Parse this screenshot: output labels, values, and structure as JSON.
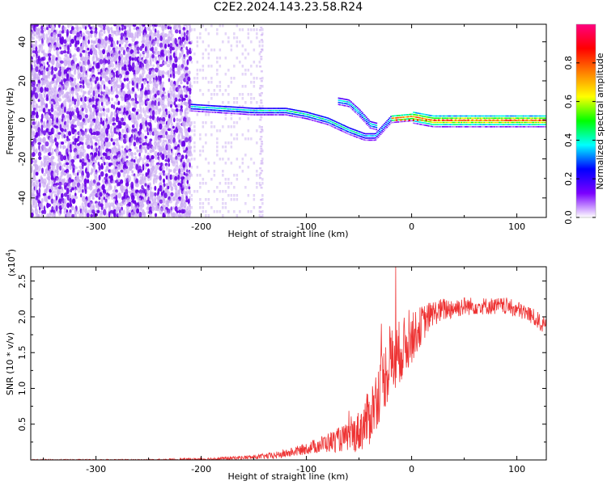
{
  "title": "C2E2.2024.143.23.58.R24",
  "chart_data": [
    {
      "type": "heatmap",
      "title": "C2E2.2024.143.23.58.R24",
      "xlabel": "Height of straight line (km)",
      "ylabel": "Frequency (Hz)",
      "xlim": [
        -362,
        128
      ],
      "ylim": [
        -50,
        49
      ],
      "x_ticks": [
        "-300",
        "-200",
        "-100",
        "0",
        "100"
      ],
      "x_tick_values": [
        -300,
        -200,
        -100,
        0,
        100
      ],
      "y_ticks": [
        "40",
        "20",
        "0",
        "-20",
        "-40"
      ],
      "y_tick_values": [
        40,
        20,
        0,
        -20,
        -40
      ],
      "colorbar": {
        "label": "Normalized spectral amplitude",
        "range": [
          0,
          1
        ],
        "ticks": [
          "0.0",
          "0.2",
          "0.4",
          "0.6",
          "0.8"
        ],
        "tick_values": [
          0.0,
          0.2,
          0.4,
          0.6,
          0.8
        ],
        "colormap": [
          "#ffffff",
          "#7b00ff",
          "#0000ff",
          "#00ffff",
          "#00ff00",
          "#ffff00",
          "#ff8000",
          "#ff0000",
          "#ff0080"
        ]
      },
      "features": {
        "noise_region_x": [
          -362,
          -210
        ],
        "faint_noise_x": [
          -210,
          -140
        ],
        "main_trace": {
          "x": [
            -210,
            -180,
            -150,
            -120,
            -100,
            -80,
            -60,
            -45,
            -35,
            -20,
            0,
            20,
            60,
            128
          ],
          "y": [
            7,
            6,
            5,
            5,
            3,
            0,
            -5,
            -8,
            -8,
            1,
            2,
            0,
            0,
            0
          ]
        },
        "branch_trace": {
          "x": [
            -70,
            -60,
            -50,
            -40,
            -33
          ],
          "y": [
            10,
            9,
            4,
            -2,
            -3
          ]
        }
      }
    },
    {
      "type": "line",
      "xlabel": "Height of straight line (km)",
      "ylabel": "SNR (10 * v/v)",
      "y_multiplier": "(x10",
      "y_multiplier_exp": "4",
      "y_multiplier_close": ")",
      "xlim": [
        -362,
        128
      ],
      "ylim": [
        0,
        2.7
      ],
      "x_ticks": [
        "-300",
        "-200",
        "-100",
        "0",
        "100"
      ],
      "x_tick_values": [
        -300,
        -200,
        -100,
        0,
        100
      ],
      "y_ticks": [
        "0.5",
        "1.0",
        "1.5",
        "2.0",
        "2.5"
      ],
      "y_tick_values": [
        0.5,
        1.0,
        1.5,
        2.0,
        2.5
      ],
      "series": [
        {
          "color": "#ee3333",
          "envelope": {
            "x": [
              -362,
              -250,
              -200,
              -180,
              -150,
              -130,
              -110,
              -90,
              -70,
              -60,
              -50,
              -45,
              -40,
              -35,
              -30,
              -25,
              -20,
              -15,
              -10,
              -5,
              0,
              10,
              20,
              30,
              50,
              70,
              90,
              100,
              110,
              120,
              128
            ],
            "y": [
              0.0,
              0.0,
              0.01,
              0.02,
              0.04,
              0.06,
              0.12,
              0.2,
              0.28,
              0.32,
              0.4,
              0.5,
              0.6,
              0.8,
              1.0,
              1.2,
              1.35,
              1.4,
              1.55,
              1.6,
              1.7,
              1.9,
              2.05,
              2.1,
              2.15,
              2.15,
              2.15,
              2.1,
              2.05,
              1.95,
              1.85
            ]
          },
          "noise_amplitude": {
            "x": [
              -362,
              -250,
              -150,
              -100,
              -60,
              -40,
              -30,
              -20,
              -10,
              0,
              20,
              60,
              128
            ],
            "y": [
              0.01,
              0.01,
              0.03,
              0.08,
              0.2,
              0.4,
              0.45,
              0.5,
              0.45,
              0.35,
              0.18,
              0.12,
              0.12
            ]
          },
          "peak": {
            "x": -15,
            "y": 2.75
          }
        }
      ]
    }
  ]
}
